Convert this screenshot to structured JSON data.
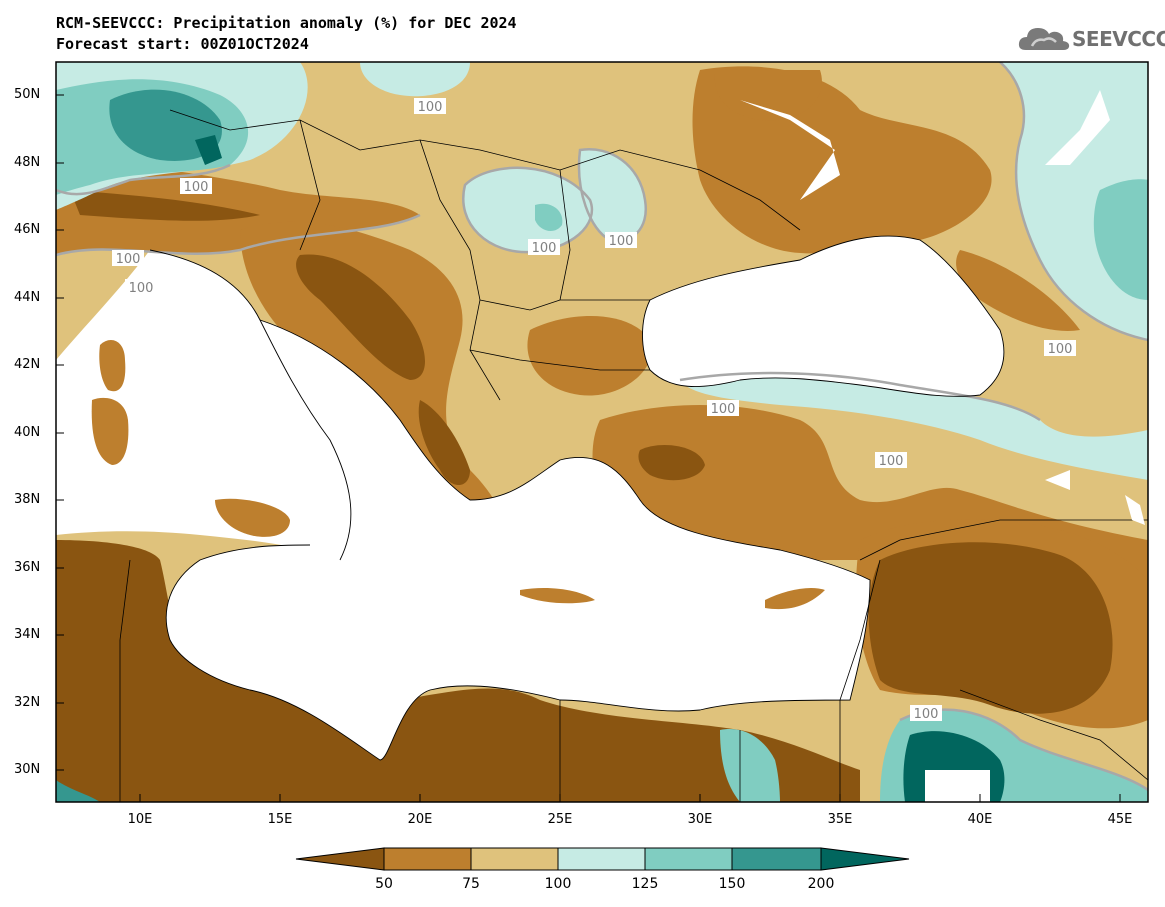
{
  "header": {
    "title": "RCM-SEEVCCC: Precipitation anomaly (%) for DEC 2024",
    "subtitle": "Forecast start: 00Z01OCT2024"
  },
  "logo": {
    "text": "SEEVCCC",
    "icon": "cloud-icon"
  },
  "map": {
    "lat_range": [
      29,
      51
    ],
    "lon_range": [
      7,
      46
    ],
    "lat_ticks": [
      "50N",
      "48N",
      "46N",
      "44N",
      "42N",
      "40N",
      "38N",
      "36N",
      "34N",
      "32N",
      "30N"
    ],
    "lon_ticks": [
      "10E",
      "15E",
      "20E",
      "25E",
      "30E",
      "35E",
      "40E",
      "45E"
    ],
    "contour_labels": [
      "100",
      "100",
      "100",
      "100",
      "100",
      "100",
      "100",
      "100",
      "100",
      "100"
    ],
    "colors": {
      "lt50": "#8a5511",
      "c50_75": "#bd7f2e",
      "c75_100": "#dfc27c",
      "c100_125": "#c6ebe4",
      "c125_150": "#80cdc1",
      "c150_200": "#35978f",
      "gt200": "#01665e",
      "sea": "#ffffff"
    }
  },
  "colorbar": {
    "levels": [
      "50",
      "75",
      "100",
      "125",
      "150",
      "200"
    ],
    "colors": [
      "#8a5511",
      "#bd7f2e",
      "#dfc27c",
      "#c6ebe4",
      "#80cdc1",
      "#35978f",
      "#01665e"
    ]
  }
}
